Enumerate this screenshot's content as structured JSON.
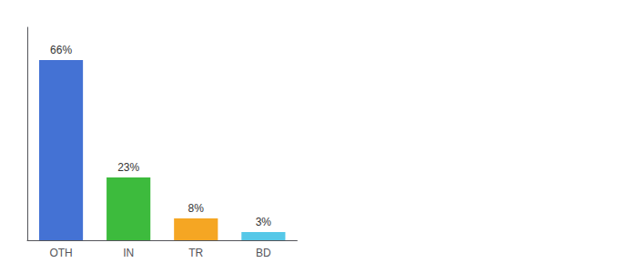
{
  "chart_data": {
    "type": "bar",
    "categories": [
      "OTH",
      "IN",
      "TR",
      "BD"
    ],
    "values": [
      66,
      23,
      8,
      3
    ],
    "value_labels": [
      "66%",
      "23%",
      "8%",
      "3%"
    ],
    "colors": [
      "#4472d4",
      "#3dbb3d",
      "#f5a623",
      "#56c8e8"
    ],
    "ylim": [
      0,
      78
    ],
    "grid": false,
    "data_labels": true,
    "tick_labels": "x"
  }
}
